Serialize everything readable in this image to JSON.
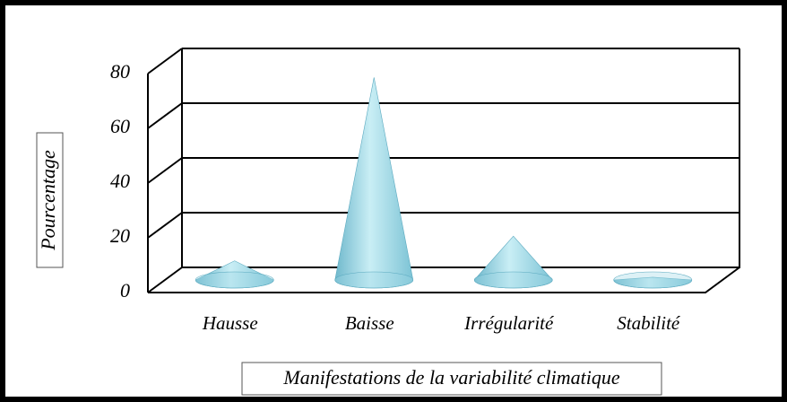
{
  "chart_data": {
    "type": "cone3d",
    "categories": [
      "Hausse",
      "Baisse",
      "Irrégularité",
      "Stabilité"
    ],
    "values": [
      7,
      74,
      16,
      1
    ],
    "color": "#9fd8e6",
    "ylim": [
      0,
      80
    ],
    "yticks": [
      0,
      20,
      40,
      60,
      80
    ],
    "grid": true,
    "y_label": "Pourcentage",
    "x_label": "Manifestations de la variabilité climatique"
  }
}
